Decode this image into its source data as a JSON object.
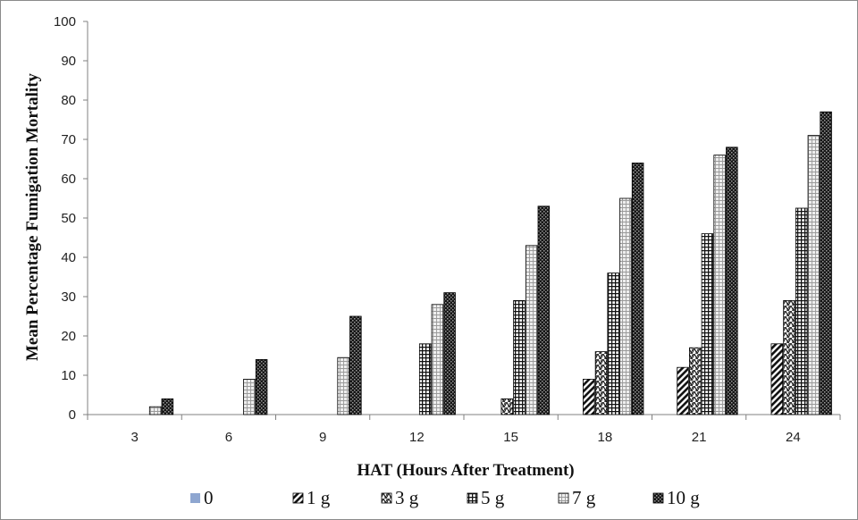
{
  "chart_data": {
    "type": "bar",
    "categories": [
      "3",
      "6",
      "9",
      "12",
      "15",
      "18",
      "21",
      "24"
    ],
    "series": [
      {
        "name": "0",
        "values": [
          0,
          0,
          0,
          0,
          0,
          0,
          0,
          0
        ],
        "pattern": "solid",
        "color": "#8ea6d0"
      },
      {
        "name": "1 g",
        "values": [
          0,
          0,
          0,
          0,
          0,
          9,
          12,
          18
        ],
        "pattern": "diag-bold"
      },
      {
        "name": "3 g",
        "values": [
          0,
          0,
          0,
          0,
          4,
          16,
          17,
          29
        ],
        "pattern": "zigzag"
      },
      {
        "name": "5 g",
        "values": [
          0,
          0,
          0,
          18,
          29,
          36,
          46,
          52.5
        ],
        "pattern": "grid"
      },
      {
        "name": "7 g",
        "values": [
          2,
          9,
          14.5,
          28,
          43,
          55,
          66,
          71
        ],
        "pattern": "light-grid"
      },
      {
        "name": "10 g",
        "values": [
          4,
          14,
          25,
          31,
          53,
          64,
          68,
          77
        ],
        "pattern": "dark-check"
      }
    ],
    "xlabel": "HAT (Hours After Treatment)",
    "ylabel": "Mean Percentage Fumigation Mortality",
    "ylim": [
      0,
      100
    ],
    "yticks": [
      "0",
      "10",
      "20",
      "30",
      "40",
      "50",
      "60",
      "70",
      "80",
      "90",
      "100"
    ],
    "grid": false,
    "legend_position": "bottom"
  }
}
